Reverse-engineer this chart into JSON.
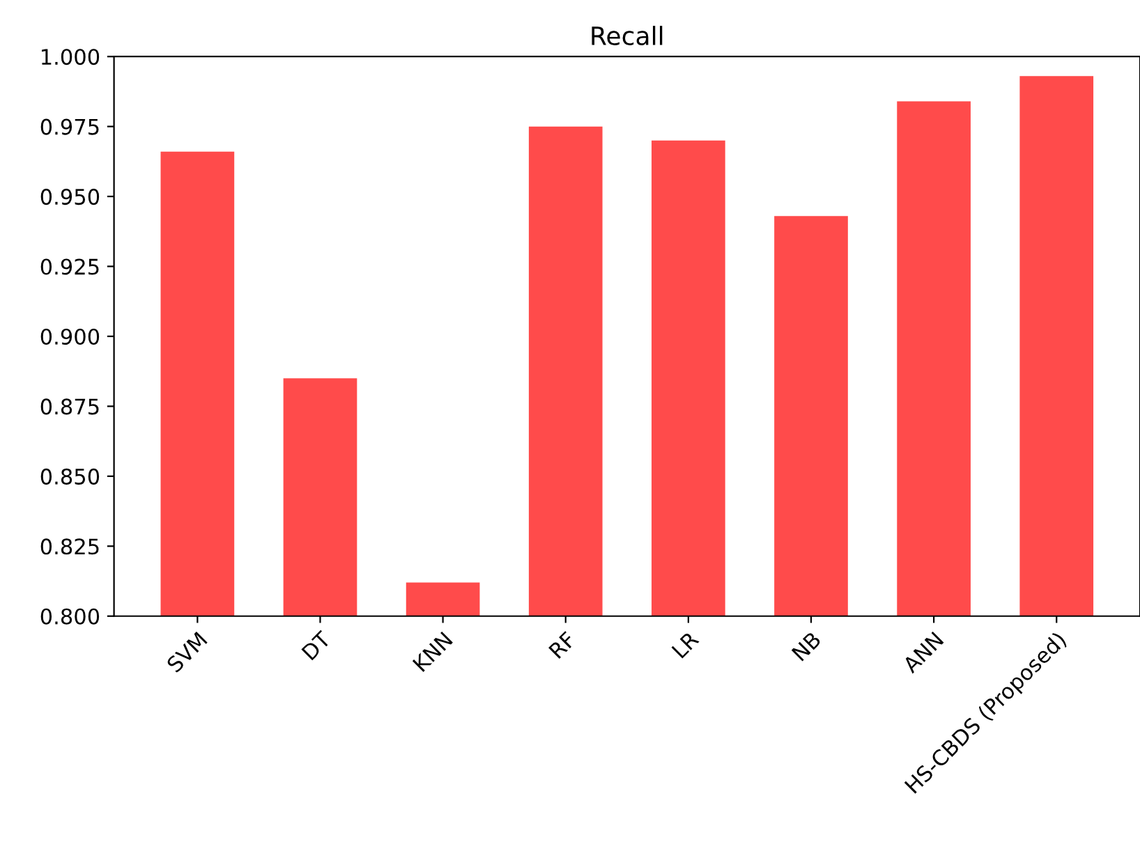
{
  "chart_data": {
    "type": "bar",
    "title": "Recall",
    "categories": [
      "SVM",
      "DT",
      "KNN",
      "RF",
      "LR",
      "NB",
      "ANN",
      "HS-CBDS (Proposed)"
    ],
    "values": [
      0.966,
      0.885,
      0.812,
      0.975,
      0.97,
      0.943,
      0.984,
      0.993
    ],
    "color": "#ff4b4b",
    "ylim": [
      0.8,
      1.0
    ],
    "yticks": [
      {
        "value": 0.8,
        "label": "0.800"
      },
      {
        "value": 0.825,
        "label": "0.825"
      },
      {
        "value": 0.85,
        "label": "0.850"
      },
      {
        "value": 0.875,
        "label": "0.875"
      },
      {
        "value": 0.9,
        "label": "0.900"
      },
      {
        "value": 0.925,
        "label": "0.925"
      },
      {
        "value": 0.95,
        "label": "0.950"
      },
      {
        "value": 0.975,
        "label": "0.975"
      },
      {
        "value": 1.0,
        "label": "1.000"
      }
    ],
    "grid": false
  }
}
